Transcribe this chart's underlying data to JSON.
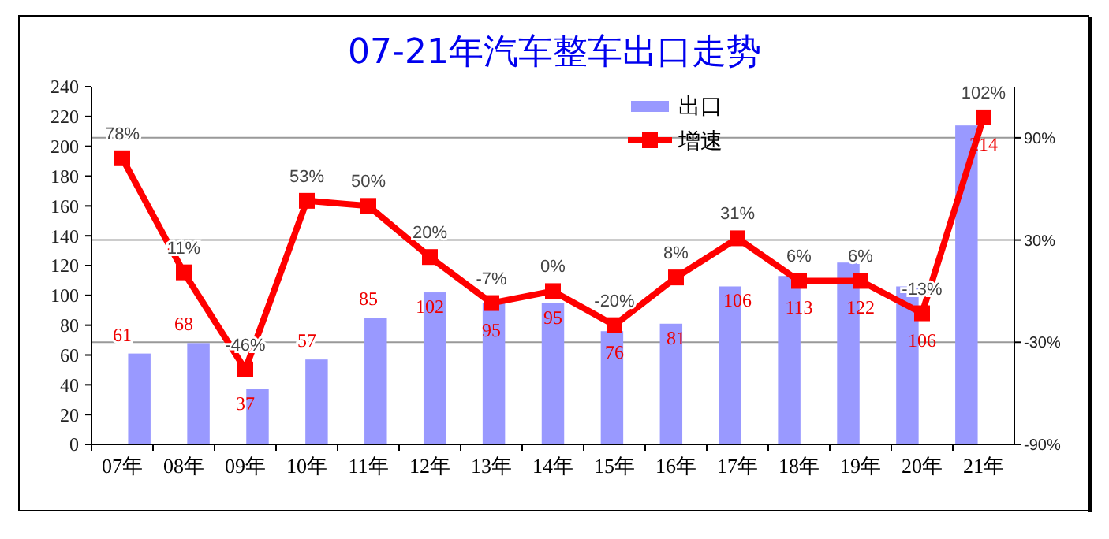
{
  "chart_data": {
    "type": "bar",
    "title": "07-21年汽车整车出口走势",
    "categories": [
      "07年",
      "08年",
      "09年",
      "10年",
      "11年",
      "12年",
      "13年",
      "14年",
      "15年",
      "16年",
      "17年",
      "18年",
      "19年",
      "20年",
      "21年"
    ],
    "series": [
      {
        "name": "出口",
        "color": "#9999ff",
        "values": [
          61,
          68,
          37,
          57,
          85,
          102,
          95,
          95,
          76,
          81,
          106,
          113,
          122,
          106,
          214
        ],
        "value_labels": [
          "61",
          "68",
          "37",
          "57",
          "85",
          "102",
          "95",
          "95",
          "76",
          "81",
          "106",
          "113",
          "122",
          "106",
          "214"
        ]
      },
      {
        "name": "增速",
        "type": "line",
        "axis": "y2",
        "color": "#ff0000",
        "values": [
          78,
          11,
          -46,
          53,
          50,
          20,
          -7,
          0,
          -20,
          8,
          31,
          6,
          6,
          -13,
          102
        ],
        "value_labels": [
          "78%",
          "11%",
          "-46%",
          "53%",
          "50%",
          "20%",
          "-7%",
          "0%",
          "-20%",
          "8%",
          "31%",
          "6%",
          "6%",
          "-13%",
          "102%"
        ]
      }
    ],
    "ylim": [
      0,
      240
    ],
    "yticks": [
      0,
      20,
      40,
      60,
      80,
      100,
      120,
      140,
      160,
      180,
      200,
      220,
      240
    ],
    "y2lim": [
      -90,
      120
    ],
    "y2ticks": [
      {
        "value": -90,
        "label": "-90%"
      },
      {
        "value": -30,
        "label": "-30%"
      },
      {
        "value": 30,
        "label": "30%"
      },
      {
        "value": 90,
        "label": "90%"
      }
    ],
    "grid": true,
    "legend": "top right",
    "marker": "square",
    "line_style": "solid"
  }
}
